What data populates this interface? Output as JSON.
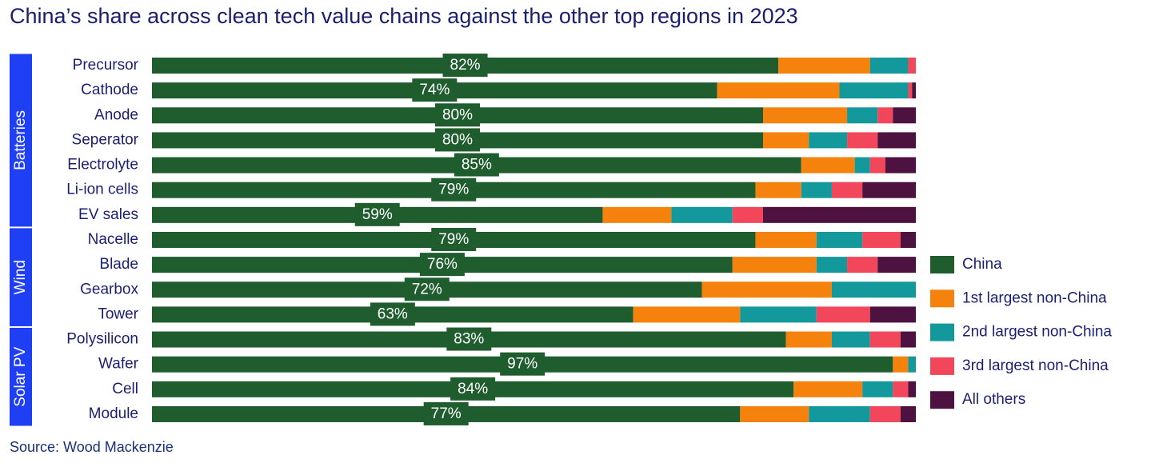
{
  "chart_data": {
    "type": "stacked_hbar",
    "title": "China’s share across clean tech value chains against the other top regions in 2023",
    "source": "Source: Wood Mackenzie",
    "groups": [
      {
        "name": "Batteries",
        "categories": [
          "Precursor",
          "Cathode",
          "Anode",
          "Seperator",
          "Electrolyte",
          "Li-ion cells",
          "EV sales"
        ]
      },
      {
        "name": "Wind",
        "categories": [
          "Nacelle",
          "Blade",
          "Gearbox",
          "Tower"
        ]
      },
      {
        "name": "Solar PV",
        "categories": [
          "Polysilicon",
          "Wafer",
          "Cell",
          "Module"
        ]
      }
    ],
    "xlim": [
      0,
      100
    ],
    "series": [
      {
        "name": "China",
        "color": "#1f5c2e",
        "values": [
          82,
          74,
          80,
          80,
          85,
          79,
          59,
          79,
          76,
          72,
          63,
          83,
          97,
          84,
          77
        ],
        "value_labels": [
          "82%",
          "74%",
          "80%",
          "80%",
          "85%",
          "79%",
          "59%",
          "79%",
          "76%",
          "72%",
          "63%",
          "83%",
          "97%",
          "84%",
          "77%"
        ]
      },
      {
        "name": "1st largest non-China",
        "color": "#f5820c",
        "values": [
          12,
          16,
          11,
          6,
          7,
          6,
          9,
          8,
          11,
          17,
          14,
          6,
          2,
          9,
          9
        ]
      },
      {
        "name": "2nd largest non-China",
        "color": "#13999c",
        "values": [
          5,
          9,
          4,
          5,
          2,
          4,
          8,
          6,
          4,
          11,
          10,
          5,
          1,
          4,
          8
        ]
      },
      {
        "name": "3rd largest non-China",
        "color": "#f2465a",
        "values": [
          1,
          0.5,
          2,
          4,
          2,
          4,
          4,
          5,
          4,
          0,
          7,
          4,
          0,
          2,
          4
        ]
      },
      {
        "name": "All others",
        "color": "#4e1240",
        "values": [
          0,
          0.5,
          3,
          5,
          4,
          7,
          20,
          2,
          5,
          0,
          6,
          2,
          0,
          1,
          2
        ]
      }
    ]
  }
}
